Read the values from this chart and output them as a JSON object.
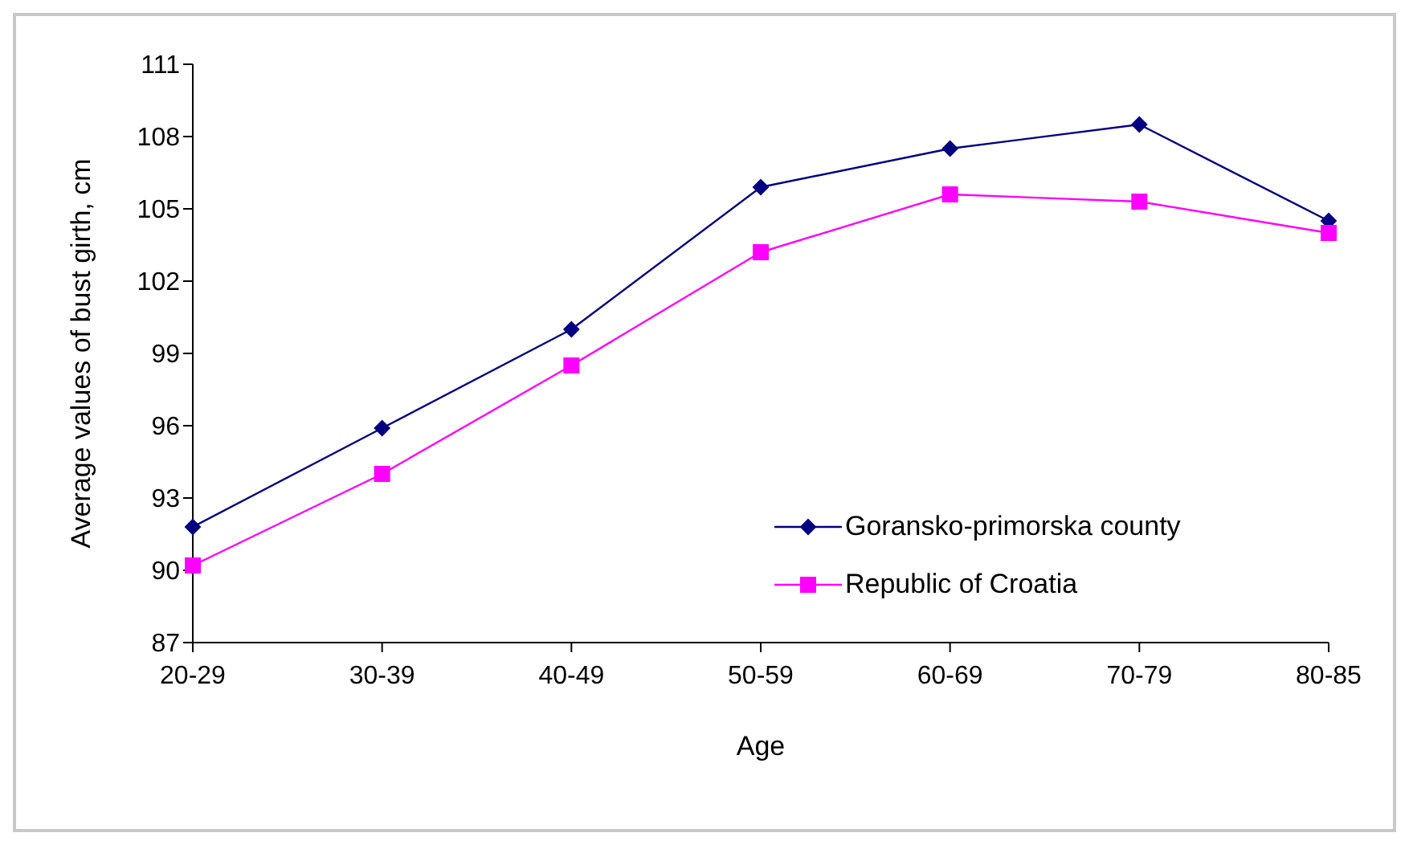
{
  "chart_data": {
    "type": "line",
    "xlabel": "Age",
    "ylabel": "Average values of bust girth, cm",
    "categories": [
      "20-29",
      "30-39",
      "40-49",
      "50-59",
      "60-69",
      "70-79",
      "80-85"
    ],
    "ylim": [
      87,
      111
    ],
    "yticks": [
      87,
      90,
      93,
      96,
      99,
      102,
      105,
      108,
      111
    ],
    "grid": false,
    "legend": "right",
    "series": [
      {
        "name": "Goransko-primorska county",
        "color": "#000080",
        "marker": "diamond",
        "values": [
          91.8,
          95.9,
          100.0,
          105.9,
          107.5,
          108.5,
          104.5
        ]
      },
      {
        "name": "Republic of Croatia",
        "color": "#ff00ff",
        "marker": "square",
        "values": [
          90.2,
          94.0,
          98.5,
          103.2,
          105.6,
          105.3,
          104.0
        ]
      }
    ]
  }
}
